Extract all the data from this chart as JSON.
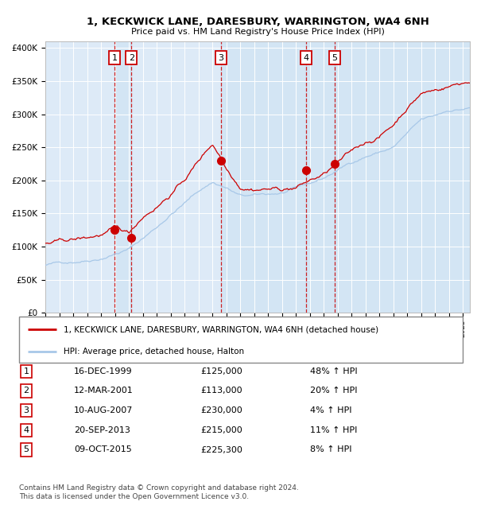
{
  "title": "1, KECKWICK LANE, DARESBURY, WARRINGTON, WA4 6NH",
  "subtitle": "Price paid vs. HM Land Registry's House Price Index (HPI)",
  "legend_line1": "1, KECKWICK LANE, DARESBURY, WARRINGTON, WA4 6NH (detached house)",
  "legend_line2": "HPI: Average price, detached house, Halton",
  "hpi_color": "#a8c8e8",
  "price_color": "#cc0000",
  "plot_bg": "#ddeaf7",
  "grid_color": "#ffffff",
  "sale_dates_x": [
    1999.96,
    2001.19,
    2007.61,
    2013.72,
    2015.77
  ],
  "sale_prices": [
    125000,
    113000,
    230000,
    215000,
    225300
  ],
  "sale_labels": [
    "1",
    "2",
    "3",
    "4",
    "5"
  ],
  "sale_info": [
    {
      "num": "1",
      "date": "16-DEC-1999",
      "price": "£125,000",
      "hpi": "48% ↑ HPI"
    },
    {
      "num": "2",
      "date": "12-MAR-2001",
      "price": "£113,000",
      "hpi": "20% ↑ HPI"
    },
    {
      "num": "3",
      "date": "10-AUG-2007",
      "price": "£230,000",
      "hpi": "4% ↑ HPI"
    },
    {
      "num": "4",
      "date": "20-SEP-2013",
      "price": "£215,000",
      "hpi": "11% ↑ HPI"
    },
    {
      "num": "5",
      "date": "09-OCT-2015",
      "price": "£225,300",
      "hpi": "8% ↑ HPI"
    }
  ],
  "xmin": 1995.0,
  "xmax": 2025.5,
  "ymin": 0,
  "ymax": 410000,
  "yticks": [
    0,
    50000,
    100000,
    150000,
    200000,
    250000,
    300000,
    350000,
    400000
  ],
  "ytick_labels": [
    "£0",
    "£50K",
    "£100K",
    "£150K",
    "£200K",
    "£250K",
    "£300K",
    "£350K",
    "£400K"
  ],
  "footer_line1": "Contains HM Land Registry data © Crown copyright and database right 2024.",
  "footer_line2": "This data is licensed under the Open Government Licence v3.0.",
  "dashed_line_color": "#cc0000",
  "shade_color": "#c8dff2",
  "hpi_anchors_t": [
    1995,
    1996,
    1997,
    1998,
    1999,
    2000,
    2001,
    2002,
    2003,
    2004,
    2005,
    2006,
    2007,
    2008,
    2009,
    2010,
    2011,
    2012,
    2013,
    2014,
    2015,
    2016,
    2017,
    2018,
    2019,
    2020,
    2021,
    2022,
    2023,
    2024,
    2025.5
  ],
  "hpi_anchors_v": [
    72000,
    75000,
    78000,
    82000,
    87000,
    95000,
    102000,
    118000,
    135000,
    155000,
    172000,
    190000,
    204000,
    196000,
    183000,
    182000,
    183000,
    185000,
    190000,
    196000,
    204000,
    216000,
    228000,
    238000,
    245000,
    252000,
    272000,
    290000,
    295000,
    304000,
    308000
  ],
  "price_anchors_t": [
    1995,
    1996,
    1997,
    1998,
    1999,
    2000,
    2001,
    2002,
    2003,
    2004,
    2005,
    2006,
    2007,
    2007.5,
    2008,
    2009,
    2010,
    2011,
    2012,
    2013,
    2014,
    2015,
    2016,
    2017,
    2018,
    2019,
    2020,
    2021,
    2022,
    2023,
    2024,
    2025,
    2025.5
  ],
  "price_anchors_v": [
    105000,
    106000,
    108000,
    110000,
    115000,
    122000,
    113000,
    140000,
    158000,
    178000,
    200000,
    228000,
    255000,
    240000,
    220000,
    196000,
    196000,
    198000,
    197000,
    200000,
    210000,
    218000,
    234000,
    248000,
    262000,
    272000,
    290000,
    318000,
    340000,
    345000,
    352000,
    358000,
    360000
  ]
}
